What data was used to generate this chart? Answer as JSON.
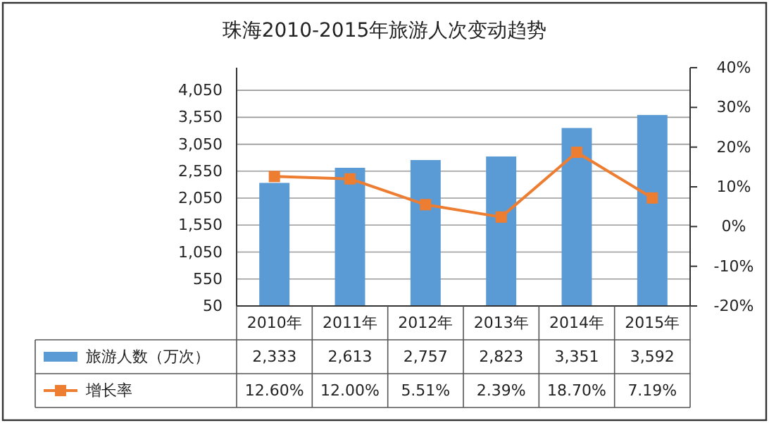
{
  "chart_data": {
    "type": "bar",
    "title": "珠海2010-2015年旅游人次变动趋势",
    "categories": [
      "2010年",
      "2011年",
      "2012年",
      "2013年",
      "2014年",
      "2015年"
    ],
    "series": [
      {
        "name": "旅游人数（万次）",
        "color": "#5b9bd5",
        "values": [
          2333,
          2613,
          2757,
          2823,
          3351,
          3592
        ],
        "value_labels": [
          "2,333",
          "2,613",
          "2,757",
          "2,823",
          "3,351",
          "3,592"
        ]
      },
      {
        "name": "增长率",
        "type": "line",
        "axis": "y2",
        "color": "#ed7d31",
        "marker": "square",
        "values": [
          12.6,
          12.0,
          5.51,
          2.39,
          18.7,
          7.19
        ],
        "value_labels": [
          "12.60%",
          "12.00%",
          "5.51%",
          "2.39%",
          "18.70%",
          "7.19%"
        ]
      }
    ],
    "ylim": [
      50,
      4470
    ],
    "yticks": [
      {
        "value": 50,
        "label": "50"
      },
      {
        "value": 550,
        "label": "550"
      },
      {
        "value": 1050,
        "label": "1,050"
      },
      {
        "value": 1550,
        "label": "1,550"
      },
      {
        "value": 2050,
        "label": "2,050"
      },
      {
        "value": 2550,
        "label": "2,550"
      },
      {
        "value": 3050,
        "label": "3,050"
      },
      {
        "value": 3550,
        "label": "3,550"
      },
      {
        "value": 4050,
        "label": "4,050"
      }
    ],
    "y2lim": [
      -20,
      40
    ],
    "y2ticks": [
      {
        "value": -20,
        "label": "-20%"
      },
      {
        "value": -10,
        "label": "-10%"
      },
      {
        "value": 0,
        "label": "0%"
      },
      {
        "value": 10,
        "label": "10%"
      },
      {
        "value": 20,
        "label": "20%"
      },
      {
        "value": 30,
        "label": "30%"
      },
      {
        "value": 40,
        "label": "40%"
      }
    ],
    "grid": "y",
    "legend": "bottom"
  }
}
